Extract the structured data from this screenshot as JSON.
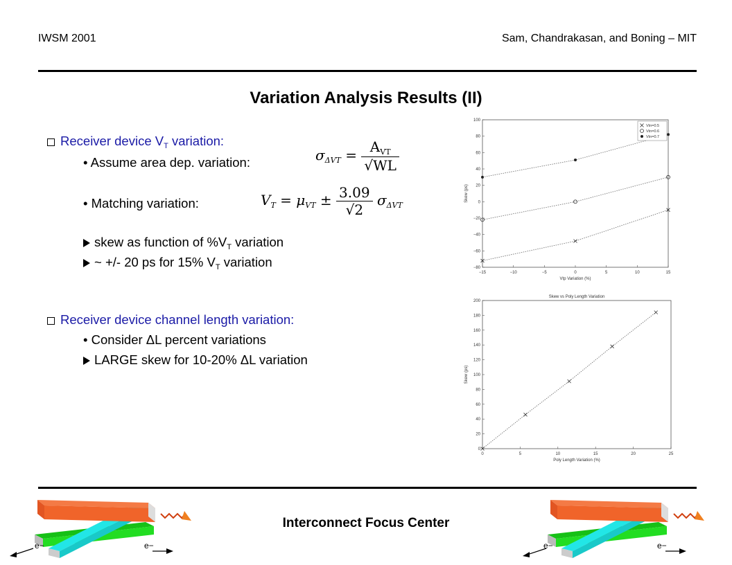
{
  "header": {
    "left": "IWSM 2001",
    "right": "Sam, Chandrakasan, and Boning – MIT"
  },
  "title": "Variation Analysis Results (II)",
  "section1": {
    "heading": "Receiver device V",
    "heading_sub": "T",
    "heading_tail": " variation:",
    "bullet1": "Assume area dep. variation:",
    "bullet2": "Matching variation:",
    "arrow1_a": "skew as function of %V",
    "arrow1_sub": "T",
    "arrow1_b": " variation",
    "arrow2_a": "~ +/- 20 ps for 15% V",
    "arrow2_sub": "T",
    "arrow2_b": " variation"
  },
  "section2": {
    "heading": "Receiver device channel length variation:",
    "bullet1": "Consider ΔL percent variations",
    "arrow1": "LARGE skew for 10-20% ΔL variation"
  },
  "equations": {
    "eq1_lhs": "σ",
    "eq1_lhs_sub": "ΔVT",
    "eq1_num": "A",
    "eq1_num_sub": "VT",
    "eq1_den": "√WL",
    "eq2_lhs": "V",
    "eq2_lhs_sub": "T",
    "eq2_mid": "= μ",
    "eq2_mid_sub": "VT",
    "eq2_pm": "±",
    "eq2_num": "3.09",
    "eq2_den": "√2",
    "eq2_tail": "σ",
    "eq2_tail_sub": "ΔVT"
  },
  "footer": {
    "label": "Interconnect Focus Center",
    "electron": "e−"
  },
  "colors": {
    "blue_text": "#1a1aa6",
    "orange": "#f0642a",
    "cyan": "#22e6e6",
    "green": "#22cc22"
  },
  "chart_data": [
    {
      "type": "scatter",
      "title": "",
      "xlabel": "Vtp Variation (%)",
      "ylabel": "Skew (ps)",
      "xlim": [
        -15,
        15
      ],
      "ylim": [
        -80,
        100
      ],
      "xticks": [
        -15,
        -10,
        -5,
        0,
        5,
        10,
        15
      ],
      "yticks": [
        -80,
        -60,
        -40,
        -20,
        0,
        20,
        40,
        60,
        80,
        100
      ],
      "legend_position": "top-right",
      "series": [
        {
          "name": "Vtn=0.5",
          "marker": "x",
          "x": [
            -15,
            0,
            15
          ],
          "y": [
            -72,
            -48,
            -10
          ]
        },
        {
          "name": "Vtn=0.6",
          "marker": "o",
          "x": [
            -15,
            0,
            15
          ],
          "y": [
            -22,
            0,
            30
          ]
        },
        {
          "name": "Vtn=0.7",
          "marker": "*",
          "x": [
            -15,
            0,
            15
          ],
          "y": [
            30,
            51,
            82
          ]
        }
      ]
    },
    {
      "type": "line",
      "title": "Skew vs Poly Length Variation",
      "xlabel": "Poly Length Variation (%)",
      "ylabel": "Skew (ps)",
      "xlim": [
        0,
        25
      ],
      "ylim": [
        0,
        200
      ],
      "xticks": [
        0,
        5,
        10,
        15,
        20,
        25
      ],
      "yticks": [
        0,
        20,
        40,
        60,
        80,
        100,
        120,
        140,
        160,
        180,
        200
      ],
      "series": [
        {
          "marker": "x",
          "x": [
            0,
            5.7,
            11.5,
            17.2,
            23
          ],
          "y": [
            0,
            46,
            91,
            138,
            184
          ]
        }
      ]
    }
  ]
}
